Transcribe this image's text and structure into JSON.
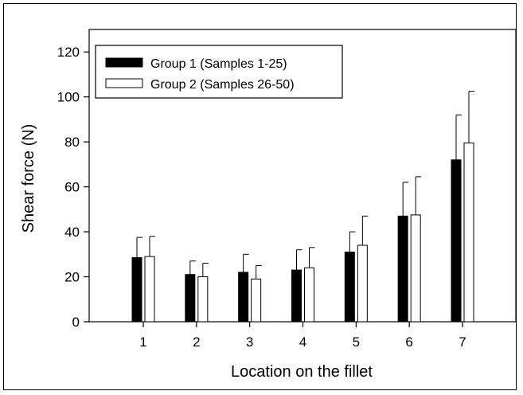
{
  "chart_data": {
    "type": "bar",
    "title": "",
    "xlabel": "Location on the fillet",
    "ylabel": "Shear force (N)",
    "categories": [
      "1",
      "2",
      "3",
      "4",
      "5",
      "6",
      "7"
    ],
    "ylim": [
      0,
      130
    ],
    "yticks": [
      "0",
      "20",
      "40",
      "60",
      "80",
      "100",
      "120"
    ],
    "grid": false,
    "legend_position": "top-left",
    "series": [
      {
        "name": "Group 1 (Samples 1-25)",
        "values": [
          28.5,
          21,
          22,
          23,
          31,
          47,
          72
        ],
        "error": [
          9,
          6,
          8,
          9,
          9,
          15,
          20
        ],
        "fill": "#000000"
      },
      {
        "name": "Group 2 (Samples 26-50)",
        "values": [
          29,
          20,
          19,
          24,
          34,
          47.5,
          79.5
        ],
        "error": [
          9,
          6,
          6,
          9,
          13,
          17,
          23
        ],
        "fill": "#ffffff"
      }
    ]
  }
}
